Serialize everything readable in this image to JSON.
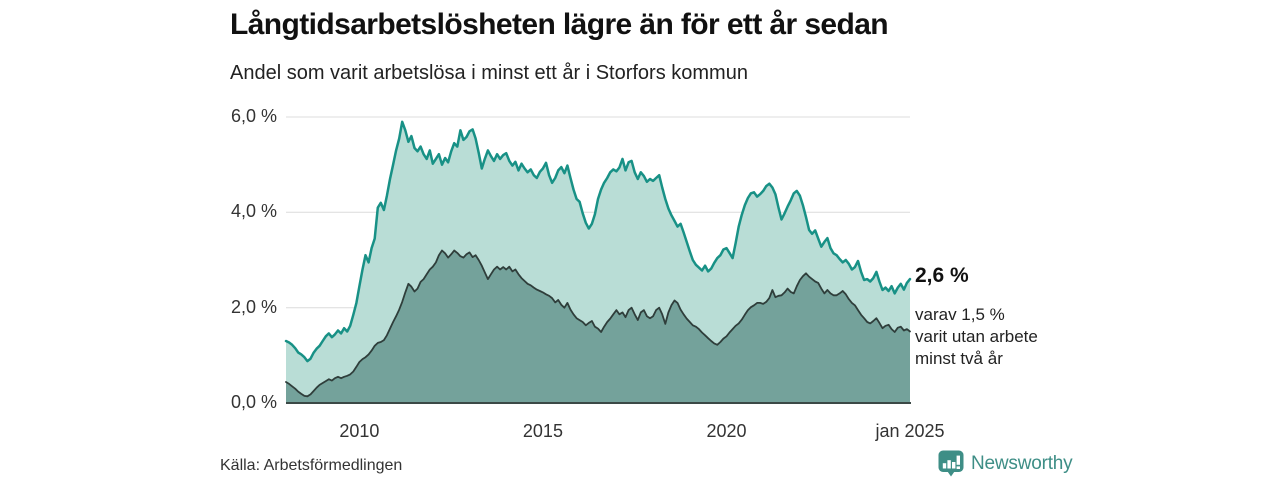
{
  "header": {
    "title": "Långtidsarbetslösheten lägre än för ett år sedan",
    "subtitle": "Andel som varit arbetslösa i minst ett år i Storfors kommun"
  },
  "annotation": {
    "value_label": "2,6 %",
    "note_lines": [
      "varav 1,5 %",
      "varit utan arbete",
      "minst två år"
    ]
  },
  "footer": {
    "source": "Källa: Arbetsförmedlingen",
    "brand": "Newsworthy"
  },
  "colors": {
    "accent_teal": "#189186",
    "light_fill": "#b9ddd6",
    "dark_fill": "#74a29b",
    "dark_line": "#2f3e3b",
    "grid": "#dcdcdc",
    "baseline": "#3b4946",
    "brand_teal": "#3e8e86"
  },
  "chart_data": {
    "type": "area",
    "title": "Långtidsarbetslösheten lägre än för ett år sedan",
    "subtitle": "Andel som varit arbetslösa i minst ett år i Storfors kommun",
    "unit": "%",
    "frequency": "monthly",
    "x_start": "2008-01",
    "x_end": "2025-01",
    "ylim": [
      0,
      6
    ],
    "grid": "horizontal",
    "legend_position": "none",
    "x_ticks": [
      {
        "label": "2010",
        "index": 24
      },
      {
        "label": "2015",
        "index": 84
      },
      {
        "label": "2020",
        "index": 144
      },
      {
        "label": "jan 2025",
        "index": 204
      }
    ],
    "y_ticks": [
      {
        "label": "0,0 %",
        "value": 0
      },
      {
        "label": "2,0 %",
        "value": 2
      },
      {
        "label": "4,0 %",
        "value": 4
      },
      {
        "label": "6,0 %",
        "value": 6
      }
    ],
    "series": [
      {
        "name": "Arbetslösa minst ett år",
        "color": "#189186",
        "fill": "#b9ddd6",
        "stroke_width": 2.5,
        "last_value_label": "2,6 %",
        "values": [
          1.3,
          1.27,
          1.22,
          1.15,
          1.06,
          1.02,
          0.96,
          0.88,
          0.93,
          1.05,
          1.14,
          1.2,
          1.3,
          1.4,
          1.46,
          1.38,
          1.44,
          1.52,
          1.46,
          1.57,
          1.5,
          1.62,
          1.85,
          2.1,
          2.45,
          2.8,
          3.1,
          2.95,
          3.25,
          3.45,
          4.1,
          4.2,
          4.05,
          4.35,
          4.7,
          5.0,
          5.3,
          5.55,
          5.9,
          5.72,
          5.48,
          5.6,
          5.35,
          5.28,
          5.38,
          5.22,
          5.12,
          5.3,
          5.02,
          5.12,
          5.22,
          5.0,
          5.14,
          5.05,
          5.28,
          5.45,
          5.38,
          5.72,
          5.52,
          5.58,
          5.7,
          5.74,
          5.55,
          5.25,
          4.92,
          5.12,
          5.3,
          5.18,
          5.08,
          5.22,
          5.12,
          5.2,
          5.24,
          5.08,
          4.98,
          5.06,
          4.88,
          5.02,
          4.92,
          4.84,
          4.9,
          4.78,
          4.72,
          4.85,
          4.92,
          5.04,
          4.78,
          4.62,
          4.72,
          4.88,
          4.95,
          4.82,
          4.98,
          4.72,
          4.48,
          4.28,
          4.22,
          3.98,
          3.78,
          3.66,
          3.76,
          3.96,
          4.28,
          4.48,
          4.62,
          4.72,
          4.84,
          4.9,
          4.86,
          4.94,
          5.12,
          4.88,
          5.05,
          5.08,
          4.84,
          4.7,
          4.84,
          4.76,
          4.64,
          4.7,
          4.66,
          4.72,
          4.78,
          4.52,
          4.28,
          4.08,
          3.94,
          3.82,
          3.7,
          3.76,
          3.58,
          3.38,
          3.18,
          3.0,
          2.9,
          2.84,
          2.78,
          2.88,
          2.76,
          2.82,
          2.94,
          3.04,
          3.1,
          3.22,
          3.25,
          3.15,
          3.04,
          3.35,
          3.7,
          3.95,
          4.15,
          4.3,
          4.4,
          4.42,
          4.33,
          4.38,
          4.45,
          4.55,
          4.6,
          4.52,
          4.38,
          4.1,
          3.85,
          3.98,
          4.12,
          4.25,
          4.4,
          4.45,
          4.35,
          4.15,
          3.9,
          3.63,
          3.55,
          3.62,
          3.45,
          3.28,
          3.38,
          3.46,
          3.25,
          3.14,
          3.1,
          3.02,
          2.95,
          3.0,
          2.92,
          2.8,
          2.85,
          2.98,
          2.75,
          2.58,
          2.6,
          2.55,
          2.62,
          2.75,
          2.55,
          2.37,
          2.42,
          2.35,
          2.45,
          2.3,
          2.42,
          2.5,
          2.38,
          2.52,
          2.6
        ]
      },
      {
        "name": "Arbetslösa minst två år",
        "color": "#2f3e3b",
        "fill": "#74a29b",
        "stroke_width": 1.8,
        "last_value_label": "1,5 %",
        "values": [
          0.44,
          0.4,
          0.35,
          0.3,
          0.24,
          0.19,
          0.15,
          0.14,
          0.18,
          0.25,
          0.32,
          0.38,
          0.42,
          0.46,
          0.5,
          0.47,
          0.52,
          0.55,
          0.52,
          0.55,
          0.57,
          0.6,
          0.66,
          0.76,
          0.86,
          0.92,
          0.96,
          1.02,
          1.1,
          1.2,
          1.26,
          1.28,
          1.32,
          1.42,
          1.56,
          1.7,
          1.82,
          1.96,
          2.12,
          2.32,
          2.5,
          2.44,
          2.34,
          2.4,
          2.54,
          2.6,
          2.7,
          2.8,
          2.86,
          2.95,
          3.1,
          3.2,
          3.14,
          3.05,
          3.12,
          3.2,
          3.15,
          3.08,
          3.05,
          3.12,
          3.16,
          3.06,
          3.1,
          3.0,
          2.88,
          2.74,
          2.6,
          2.7,
          2.8,
          2.86,
          2.8,
          2.85,
          2.8,
          2.86,
          2.76,
          2.8,
          2.7,
          2.62,
          2.56,
          2.5,
          2.47,
          2.42,
          2.38,
          2.35,
          2.32,
          2.28,
          2.25,
          2.2,
          2.11,
          2.16,
          2.06,
          2.0,
          2.1,
          1.96,
          1.86,
          1.78,
          1.74,
          1.7,
          1.63,
          1.68,
          1.72,
          1.6,
          1.56,
          1.49,
          1.6,
          1.7,
          1.77,
          1.86,
          1.95,
          1.86,
          1.9,
          1.8,
          1.95,
          2.0,
          1.86,
          1.74,
          1.9,
          1.95,
          1.82,
          1.78,
          1.82,
          1.95,
          2.0,
          1.86,
          1.66,
          1.9,
          2.05,
          2.15,
          2.1,
          1.96,
          1.86,
          1.77,
          1.7,
          1.63,
          1.6,
          1.55,
          1.48,
          1.42,
          1.36,
          1.3,
          1.25,
          1.22,
          1.28,
          1.35,
          1.4,
          1.48,
          1.55,
          1.62,
          1.67,
          1.75,
          1.85,
          1.95,
          2.01,
          2.05,
          2.1,
          2.1,
          2.08,
          2.12,
          2.2,
          2.37,
          2.22,
          2.25,
          2.26,
          2.32,
          2.4,
          2.33,
          2.3,
          2.45,
          2.58,
          2.66,
          2.72,
          2.65,
          2.6,
          2.55,
          2.52,
          2.4,
          2.3,
          2.37,
          2.3,
          2.26,
          2.26,
          2.3,
          2.35,
          2.28,
          2.18,
          2.1,
          2.05,
          1.95,
          1.85,
          1.78,
          1.7,
          1.67,
          1.72,
          1.78,
          1.68,
          1.57,
          1.62,
          1.64,
          1.55,
          1.49,
          1.58,
          1.6,
          1.52,
          1.55,
          1.5
        ]
      }
    ]
  }
}
